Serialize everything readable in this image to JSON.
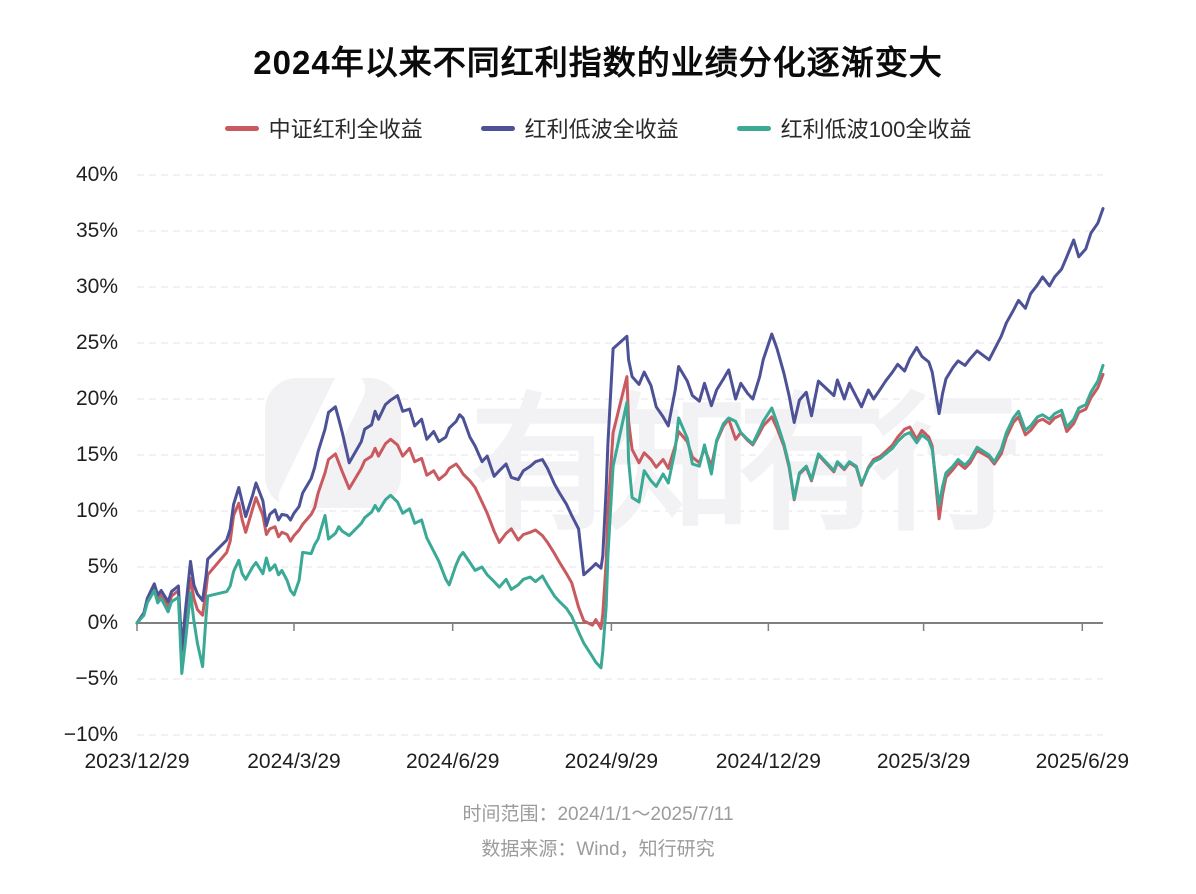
{
  "chart_data": {
    "type": "line",
    "title": "2024年以来不同红利指数的业绩分化逐渐变大",
    "xlabel": "",
    "ylabel": "",
    "ylim": [
      -10,
      40
    ],
    "y_ticks": [
      40,
      35,
      30,
      25,
      20,
      15,
      10,
      5,
      0,
      -5,
      -10
    ],
    "y_tick_suffix": "%",
    "grid": true,
    "legend_position": "top",
    "watermark": "有知有行",
    "x_ticks": [
      "2023/12/29",
      "2024/3/29",
      "2024/6/29",
      "2024/9/29",
      "2024/12/29",
      "2025/3/29",
      "2025/6/29"
    ],
    "x_start": "2023/12/29",
    "x_end": "2025/7/11",
    "x": [
      "2023/12/29",
      "2024/1/2",
      "2024/1/4",
      "2024/1/8",
      "2024/1/10",
      "2024/1/12",
      "2024/1/16",
      "2024/1/18",
      "2024/1/22",
      "2024/1/24",
      "2024/1/26",
      "2024/1/29",
      "2024/1/31",
      "2024/2/2",
      "2024/2/5",
      "2024/2/7",
      "2024/2/8",
      "2024/2/19",
      "2024/2/21",
      "2024/2/23",
      "2024/2/26",
      "2024/2/28",
      "2024/3/1",
      "2024/3/5",
      "2024/3/7",
      "2024/3/11",
      "2024/3/13",
      "2024/3/15",
      "2024/3/18",
      "2024/3/20",
      "2024/3/22",
      "2024/3/25",
      "2024/3/27",
      "2024/3/29",
      "2024/4/1",
      "2024/4/3",
      "2024/4/8",
      "2024/4/10",
      "2024/4/12",
      "2024/4/16",
      "2024/4/18",
      "2024/4/22",
      "2024/4/24",
      "2024/4/26",
      "2024/4/30",
      "2024/5/7",
      "2024/5/9",
      "2024/5/13",
      "2024/5/15",
      "2024/5/17",
      "2024/5/21",
      "2024/5/24",
      "2024/5/28",
      "2024/5/31",
      "2024/6/4",
      "2024/6/7",
      "2024/6/11",
      "2024/6/14",
      "2024/6/18",
      "2024/6/21",
      "2024/6/25",
      "2024/6/27",
      "2024/7/1",
      "2024/7/3",
      "2024/7/5",
      "2024/7/9",
      "2024/7/12",
      "2024/7/16",
      "2024/7/19",
      "2024/7/23",
      "2024/7/26",
      "2024/7/30",
      "2024/8/2",
      "2024/8/6",
      "2024/8/9",
      "2024/8/13",
      "2024/8/16",
      "2024/8/20",
      "2024/8/23",
      "2024/8/27",
      "2024/8/30",
      "2024/9/3",
      "2024/9/6",
      "2024/9/10",
      "2024/9/13",
      "2024/9/18",
      "2024/9/20",
      "2024/9/23",
      "2024/9/24",
      "2024/9/26",
      "2024/9/27",
      "2024/9/30",
      "2024/10/8",
      "2024/10/9",
      "2024/10/11",
      "2024/10/15",
      "2024/10/18",
      "2024/10/22",
      "2024/10/25",
      "2024/10/29",
      "2024/11/1",
      "2024/11/5",
      "2024/11/7",
      "2024/11/12",
      "2024/11/15",
      "2024/11/19",
      "2024/11/22",
      "2024/11/26",
      "2024/11/29",
      "2024/12/3",
      "2024/12/6",
      "2024/12/10",
      "2024/12/13",
      "2024/12/17",
      "2024/12/20",
      "2024/12/24",
      "2024/12/26",
      "2024/12/31",
      "2025/1/3",
      "2025/1/7",
      "2025/1/10",
      "2025/1/13",
      "2025/1/16",
      "2025/1/20",
      "2025/1/23",
      "2025/1/27",
      "2025/2/5",
      "2025/2/7",
      "2025/2/11",
      "2025/2/14",
      "2025/2/18",
      "2025/2/21",
      "2025/2/25",
      "2025/2/28",
      "2025/3/4",
      "2025/3/7",
      "2025/3/11",
      "2025/3/14",
      "2025/3/18",
      "2025/3/21",
      "2025/3/25",
      "2025/3/28",
      "2025/4/1",
      "2025/4/3",
      "2025/4/7",
      "2025/4/9",
      "2025/4/11",
      "2025/4/15",
      "2025/4/18",
      "2025/4/22",
      "2025/4/25",
      "2025/4/29",
      "2025/5/6",
      "2025/5/9",
      "2025/5/13",
      "2025/5/16",
      "2025/5/20",
      "2025/5/23",
      "2025/5/27",
      "2025/5/30",
      "2025/6/3",
      "2025/6/6",
      "2025/6/10",
      "2025/6/13",
      "2025/6/17",
      "2025/6/20",
      "2025/6/24",
      "2025/6/27",
      "2025/7/1",
      "2025/7/4",
      "2025/7/8",
      "2025/7/11"
    ],
    "series": [
      {
        "id": "csi-dividend-total-return",
        "name": "中证红利全收益",
        "color": "#c85a60",
        "values": [
          0.0,
          0.8,
          2.0,
          3.2,
          2.2,
          2.6,
          1.4,
          2.4,
          2.9,
          -2.6,
          0.3,
          4.0,
          2.2,
          1.2,
          0.7,
          3.0,
          4.3,
          6.3,
          7.3,
          9.6,
          10.7,
          9.2,
          8.1,
          10.2,
          11.2,
          9.6,
          7.9,
          8.4,
          8.6,
          7.7,
          8.1,
          7.9,
          7.3,
          7.8,
          8.3,
          8.8,
          9.7,
          10.3,
          11.6,
          13.4,
          14.6,
          15.1,
          14.3,
          13.5,
          12.0,
          13.8,
          14.5,
          14.9,
          15.6,
          14.9,
          16.0,
          16.4,
          15.9,
          14.9,
          15.6,
          14.4,
          14.7,
          13.2,
          13.6,
          12.8,
          13.3,
          13.8,
          14.2,
          13.8,
          13.3,
          12.7,
          12.1,
          10.8,
          9.8,
          8.2,
          7.2,
          8.0,
          8.4,
          7.4,
          7.9,
          8.1,
          8.3,
          7.8,
          7.2,
          6.2,
          5.4,
          4.4,
          3.6,
          1.4,
          0.2,
          -0.2,
          0.3,
          -0.5,
          0.8,
          5.5,
          10.0,
          17.0,
          22.0,
          18.0,
          15.5,
          14.3,
          15.2,
          14.6,
          13.9,
          14.6,
          13.8,
          15.8,
          17.1,
          16.2,
          14.8,
          14.3,
          15.6,
          14.0,
          16.2,
          17.6,
          18.2,
          16.4,
          17.0,
          16.3,
          15.9,
          17.0,
          17.6,
          18.4,
          17.4,
          15.8,
          13.9,
          11.0,
          13.3,
          13.9,
          12.7,
          15.0,
          13.5,
          14.3,
          13.7,
          14.3,
          13.9,
          12.3,
          13.9,
          14.6,
          14.9,
          15.3,
          15.9,
          16.6,
          17.3,
          17.5,
          16.4,
          17.2,
          16.6,
          15.8,
          9.3,
          11.5,
          13.0,
          13.7,
          14.3,
          13.8,
          14.3,
          15.4,
          14.8,
          14.2,
          15.1,
          16.6,
          17.9,
          18.4,
          16.8,
          17.2,
          18.0,
          18.2,
          17.8,
          18.3,
          18.6,
          17.1,
          17.8,
          18.8,
          19.1,
          20.1,
          21.0,
          22.2
        ]
      },
      {
        "id": "dividend-low-volatility-total-return",
        "name": "红利低波全收益",
        "color": "#4d5195",
        "values": [
          0.0,
          0.9,
          2.2,
          3.5,
          2.5,
          2.9,
          1.9,
          2.8,
          3.3,
          -2.4,
          1.0,
          5.5,
          3.4,
          2.6,
          2.0,
          4.2,
          5.7,
          7.4,
          8.4,
          10.6,
          12.1,
          10.8,
          9.5,
          11.4,
          12.5,
          10.9,
          8.7,
          9.7,
          10.1,
          9.2,
          9.7,
          9.6,
          9.2,
          9.8,
          10.4,
          11.6,
          12.9,
          13.9,
          15.3,
          17.3,
          18.8,
          19.3,
          18.2,
          17.0,
          14.3,
          16.2,
          17.3,
          17.7,
          18.9,
          18.2,
          19.5,
          19.9,
          20.3,
          18.9,
          19.1,
          17.6,
          18.2,
          16.4,
          17.1,
          16.2,
          16.6,
          17.4,
          18.0,
          18.6,
          18.3,
          16.6,
          15.8,
          14.4,
          14.9,
          13.1,
          13.6,
          14.2,
          13.0,
          12.8,
          13.6,
          14.0,
          14.4,
          14.6,
          13.8,
          12.4,
          11.6,
          10.6,
          9.6,
          8.4,
          4.3,
          5.0,
          5.3,
          4.9,
          6.0,
          12.0,
          16.0,
          24.5,
          25.6,
          23.5,
          22.0,
          21.3,
          22.4,
          21.2,
          19.3,
          18.4,
          17.6,
          20.8,
          22.9,
          21.6,
          20.3,
          19.8,
          21.4,
          19.4,
          20.8,
          21.8,
          22.6,
          20.0,
          21.4,
          20.5,
          20.0,
          22.0,
          23.5,
          25.8,
          24.5,
          22.3,
          20.3,
          17.9,
          19.9,
          20.6,
          18.5,
          21.6,
          20.3,
          21.7,
          20.0,
          21.4,
          20.2,
          19.3,
          20.8,
          20.0,
          20.9,
          21.6,
          22.4,
          23.1,
          22.5,
          23.6,
          24.6,
          23.8,
          23.3,
          22.4,
          18.7,
          20.5,
          21.8,
          22.8,
          23.4,
          23.0,
          23.6,
          24.3,
          23.5,
          24.4,
          25.6,
          26.8,
          27.9,
          28.8,
          28.1,
          29.4,
          30.2,
          30.9,
          30.1,
          30.9,
          31.6,
          32.7,
          34.2,
          32.7,
          33.4,
          34.8,
          35.7,
          37.0
        ]
      },
      {
        "id": "dividend-low-volatility-100-total-return",
        "name": "红利低波100全收益",
        "color": "#3aaa96",
        "values": [
          0.0,
          0.7,
          1.8,
          2.9,
          1.8,
          2.2,
          1.0,
          1.9,
          2.3,
          -4.5,
          -1.8,
          2.7,
          0.2,
          -1.8,
          -3.9,
          0.5,
          2.4,
          2.8,
          3.3,
          4.6,
          5.6,
          4.4,
          3.9,
          5.0,
          5.4,
          4.4,
          5.8,
          4.7,
          5.2,
          4.3,
          4.7,
          3.8,
          2.9,
          2.5,
          3.8,
          6.3,
          6.2,
          7.0,
          7.5,
          9.6,
          7.5,
          8.0,
          8.6,
          8.2,
          7.8,
          8.9,
          9.4,
          9.9,
          10.5,
          10.0,
          11.0,
          11.4,
          10.8,
          9.8,
          10.2,
          8.9,
          9.2,
          7.6,
          6.4,
          5.5,
          3.9,
          3.4,
          5.2,
          5.9,
          6.3,
          5.4,
          4.7,
          5.0,
          4.3,
          3.7,
          3.2,
          3.9,
          3.0,
          3.4,
          3.9,
          4.1,
          3.7,
          4.2,
          3.4,
          2.4,
          1.9,
          1.3,
          0.6,
          -0.8,
          -1.8,
          -3.0,
          -3.5,
          -4.0,
          -2.5,
          1.5,
          6.0,
          14.0,
          19.7,
          14.5,
          11.2,
          10.8,
          13.6,
          12.7,
          12.2,
          13.3,
          12.5,
          15.5,
          18.3,
          16.5,
          14.2,
          14.0,
          15.9,
          13.3,
          16.3,
          17.8,
          18.3,
          18.0,
          17.0,
          16.4,
          16.0,
          17.3,
          18.0,
          19.2,
          17.9,
          16.0,
          14.1,
          11.1,
          13.4,
          14.0,
          12.8,
          15.1,
          13.6,
          14.4,
          13.8,
          14.4,
          14.0,
          12.4,
          13.8,
          14.4,
          14.7,
          15.1,
          15.6,
          16.2,
          16.8,
          17.0,
          16.1,
          16.8,
          16.3,
          15.5,
          10.5,
          12.2,
          13.4,
          14.0,
          14.6,
          14.1,
          14.6,
          15.7,
          15.0,
          14.4,
          15.5,
          17.0,
          18.3,
          18.9,
          17.2,
          17.6,
          18.4,
          18.6,
          18.2,
          18.7,
          19.0,
          17.5,
          18.2,
          19.2,
          19.5,
          20.6,
          21.6,
          23.0
        ]
      }
    ]
  },
  "footer": {
    "time_range": "时间范围：2024/1/1～2025/7/11",
    "data_source": "数据来源：Wind，知行研究"
  },
  "colors": {
    "background": "#ffffff",
    "grid": "#e4e4e8",
    "axis": "#7f7f7f",
    "tick_text": "#1f1f1f",
    "muted_text": "#9b9b9b",
    "title_text": "#0b0b0b",
    "watermark": "#f2f2f5"
  }
}
